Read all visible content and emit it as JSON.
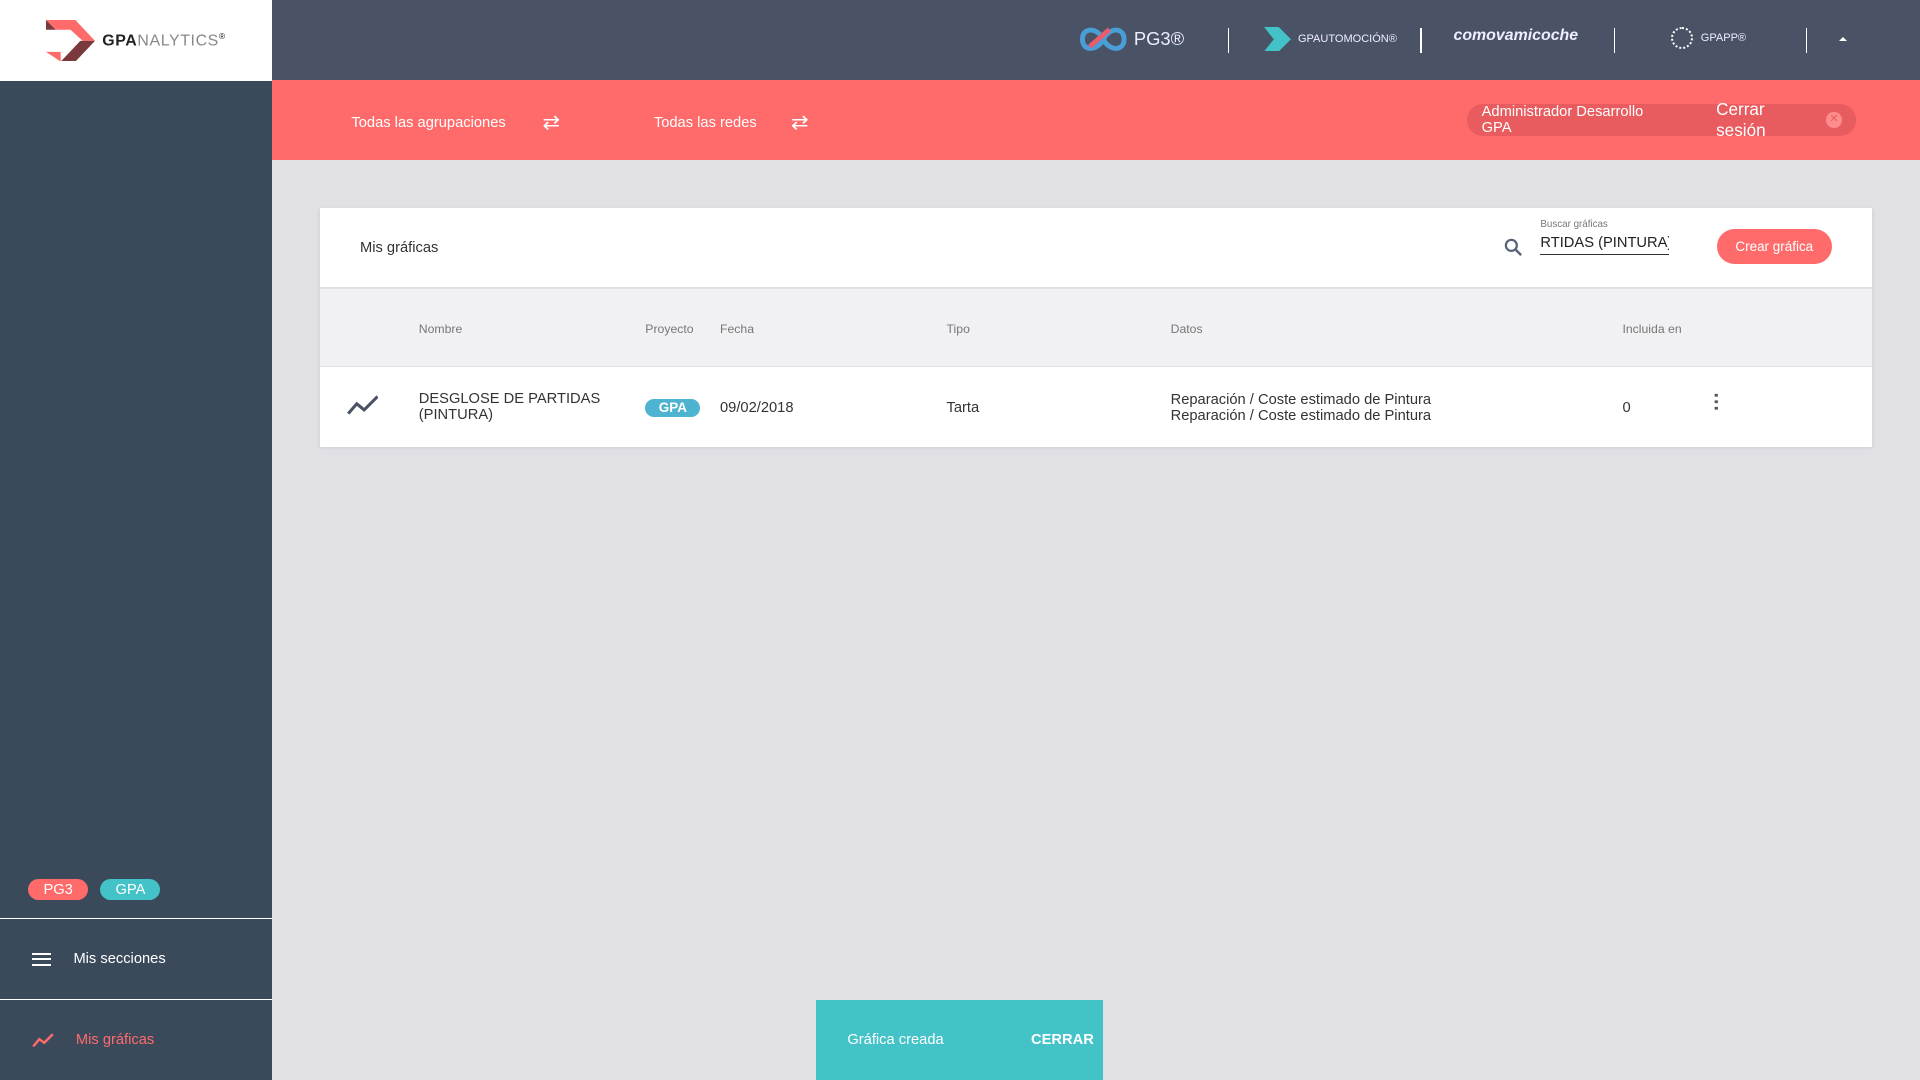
{
  "logo": {
    "brand": "GPA",
    "brand_rest": "NALYTICS",
    "reg": "®"
  },
  "topbar": {
    "brands": [
      {
        "name": "PG3®",
        "icon": "pg3-infinity-icon"
      },
      {
        "name": "GPAUTOMOCIÓN®",
        "icon": "gpautomocion-icon"
      },
      {
        "name": "comovamicoche",
        "icon": "clock-icon"
      },
      {
        "name": "GPAPP®",
        "icon": "gpapp-icon"
      }
    ],
    "collapse_icon": "caret-up-icon"
  },
  "filters": {
    "groups": "Todas las agrupaciones",
    "networks": "Todas las redes"
  },
  "user": {
    "name": "Administrador Desarrollo GPA",
    "logout": "Cerrar sesión"
  },
  "sidebar": {
    "tags": [
      {
        "label": "PG3",
        "color": "#ff6b6b"
      },
      {
        "label": "GPA",
        "color": "#43c3c8"
      }
    ],
    "items": [
      {
        "label": "Mis secciones",
        "icon": "menu-lines-icon",
        "active": false
      },
      {
        "label": "Mis gráficas",
        "icon": "trending-chart-icon",
        "active": true
      }
    ]
  },
  "main": {
    "title": "Mis gráficas",
    "search": {
      "label": "Buscar gráficas",
      "value": "RTIDAS (PINTURA)"
    },
    "create_button": "Crear gráfica",
    "columns": [
      "Nombre",
      "Proyecto",
      "Fecha",
      "Tipo",
      "Datos",
      "Incluida en"
    ],
    "rows": [
      {
        "name": "DESGLOSE DE PARTIDAS (PINTURA)",
        "project": "GPA",
        "date": "09/02/2018",
        "type": "Tarta",
        "data": [
          "Reparación / Coste estimado de Pintura",
          "Reparación / Coste estimado de Pintura"
        ],
        "included": "0"
      }
    ]
  },
  "snackbar": {
    "message": "Gráfica creada",
    "action": "CERRAR"
  },
  "colors": {
    "accent": "#ff6b6b",
    "teal": "#43c3c8",
    "sidebar": "#3a4a5b",
    "header": "#4a5265"
  }
}
